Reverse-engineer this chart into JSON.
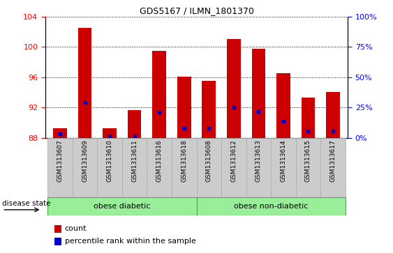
{
  "title": "GDS5167 / ILMN_1801370",
  "samples": [
    "GSM1313607",
    "GSM1313609",
    "GSM1313610",
    "GSM1313611",
    "GSM1313616",
    "GSM1313618",
    "GSM1313608",
    "GSM1313612",
    "GSM1313613",
    "GSM1313614",
    "GSM1313615",
    "GSM1313617"
  ],
  "bar_tops": [
    89.3,
    102.5,
    89.3,
    91.7,
    99.5,
    96.1,
    95.5,
    101.0,
    99.7,
    96.5,
    93.3,
    94.0
  ],
  "blue_pos": [
    88.5,
    92.7,
    88.3,
    88.3,
    91.4,
    89.3,
    89.3,
    92.0,
    91.5,
    90.2,
    88.9,
    88.9
  ],
  "bar_baseline": 88.0,
  "ylim_left": [
    88,
    104
  ],
  "yticks_left": [
    88,
    92,
    96,
    100,
    104
  ],
  "yticks_right": [
    0,
    25,
    50,
    75,
    100
  ],
  "yticklabels_right": [
    "0%",
    "25%",
    "50%",
    "75%",
    "100%"
  ],
  "bar_color": "#cc0000",
  "blue_color": "#0000cc",
  "group1_label": "obese diabetic",
  "group2_label": "obese non-diabetic",
  "group1_count": 6,
  "group2_count": 6,
  "disease_state_label": "disease state",
  "legend_count_label": "count",
  "legend_percentile_label": "percentile rank within the sample",
  "group_color": "#99ee99",
  "group_border_color": "#44aa44",
  "bg_color": "#ffffff",
  "xtick_bg_color": "#cccccc",
  "xtick_border_color": "#aaaaaa"
}
